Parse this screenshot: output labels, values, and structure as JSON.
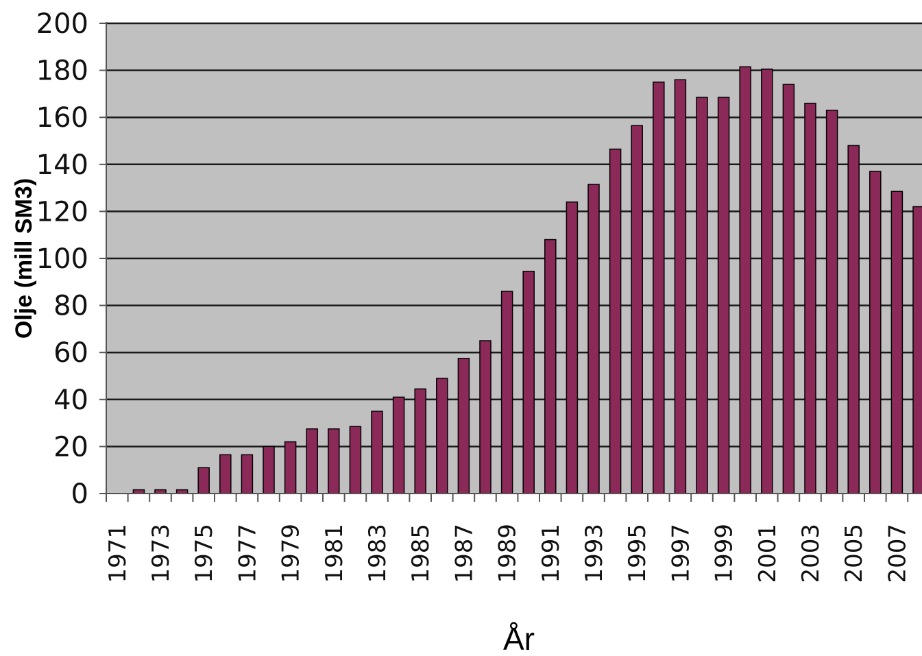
{
  "colors": {
    "plot_background": "#c0c0c0",
    "bar_fill": "#8b2a58",
    "bar_stroke": "#000000",
    "gridline": "#1a1a1a"
  },
  "chart_data": {
    "type": "bar",
    "xlabel": "År",
    "ylabel": "Olje (mill SM3)",
    "ylim": [
      0,
      200
    ],
    "yticks": [
      0,
      20,
      40,
      60,
      80,
      100,
      120,
      140,
      160,
      180,
      200
    ],
    "grid": true,
    "legend": "none",
    "categories": [
      "1971",
      "1972",
      "1973",
      "1974",
      "1975",
      "1976",
      "1977",
      "1978",
      "1979",
      "1980",
      "1981",
      "1982",
      "1983",
      "1984",
      "1985",
      "1986",
      "1987",
      "1988",
      "1989",
      "1990",
      "1991",
      "1992",
      "1993",
      "1994",
      "1995",
      "1996",
      "1997",
      "1998",
      "1999",
      "2000",
      "2001",
      "2002",
      "2003",
      "2004",
      "2005",
      "2006",
      "2007",
      "2008"
    ],
    "tick_labels": [
      "1971",
      "1973",
      "1975",
      "1977",
      "1979",
      "1981",
      "1983",
      "1985",
      "1987",
      "1989",
      "1991",
      "1993",
      "1995",
      "1997",
      "1999",
      "2001",
      "2003",
      "2005",
      "2007"
    ],
    "values": [
      0,
      1.6,
      1.6,
      1.6,
      11,
      16.5,
      16.5,
      20,
      22,
      27.5,
      27.5,
      28.5,
      35,
      41,
      44.5,
      49,
      57.5,
      65,
      86,
      94.5,
      108,
      124,
      131.5,
      146.5,
      156.5,
      175,
      176,
      168.5,
      168.5,
      181.5,
      180.5,
      174,
      166,
      163,
      148,
      137,
      128.5,
      122
    ]
  }
}
